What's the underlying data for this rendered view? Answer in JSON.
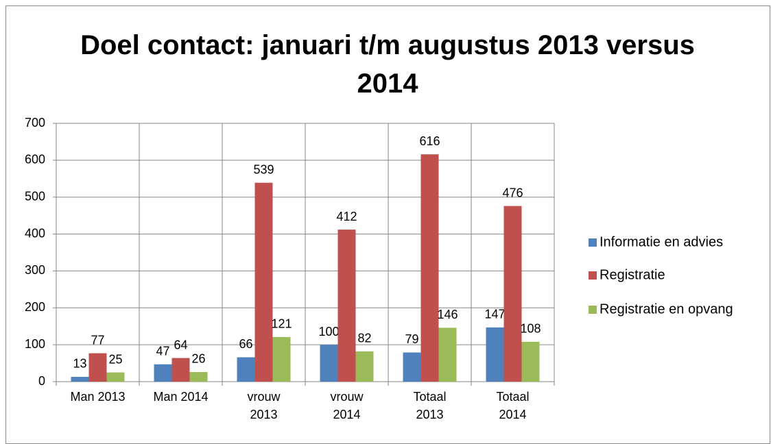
{
  "chart_data": {
    "type": "bar",
    "title": "Doel contact: januari t/m augustus 2013 versus 2014",
    "categories": [
      "Man 2013",
      "Man 2014",
      "vrouw 2013",
      "vrouw 2014",
      "Totaal 2013",
      "Totaal 2014"
    ],
    "series": [
      {
        "name": "Informatie en advies",
        "color": "#4f81bd",
        "values": [
          13,
          47,
          66,
          100,
          79,
          147
        ]
      },
      {
        "name": "Registratie",
        "color": "#c0504d",
        "values": [
          77,
          64,
          539,
          412,
          616,
          476
        ]
      },
      {
        "name": "Registratie en opvang",
        "color": "#9bbb59",
        "values": [
          25,
          26,
          121,
          82,
          146,
          108
        ]
      }
    ],
    "ylim": [
      0,
      700
    ],
    "yticks": [
      0,
      100,
      200,
      300,
      400,
      500,
      600,
      700
    ],
    "grid": true,
    "legend": "right"
  }
}
